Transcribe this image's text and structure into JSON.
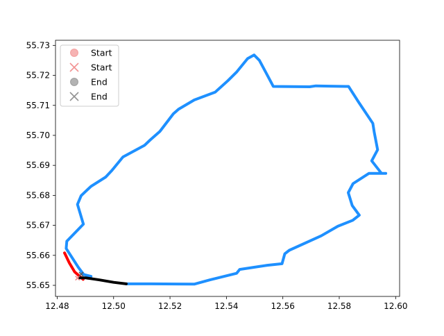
{
  "chart_data": {
    "type": "line",
    "title": "",
    "xlabel": "",
    "ylabel": "",
    "xlim": [
      12.4794,
      12.6014
    ],
    "ylim": [
      55.6463,
      55.7317
    ],
    "grid": false,
    "x_ticks": [
      "12.48",
      "12.50",
      "12.52",
      "12.54",
      "12.56",
      "12.58",
      "12.60"
    ],
    "x_tick_values": [
      12.48,
      12.5,
      12.52,
      12.54,
      12.56,
      12.58,
      12.6
    ],
    "y_ticks": [
      "55.65",
      "55.66",
      "55.67",
      "55.68",
      "55.69",
      "55.70",
      "55.71",
      "55.72",
      "55.73"
    ],
    "y_tick_values": [
      55.65,
      55.66,
      55.67,
      55.68,
      55.69,
      55.7,
      55.71,
      55.72,
      55.73
    ],
    "legend_position": "upper left",
    "legend": [
      {
        "label": "Start",
        "marker": "circle",
        "color": "#f08080"
      },
      {
        "label": "Start",
        "marker": "x",
        "color": "#f08080"
      },
      {
        "label": "End",
        "marker": "circle",
        "color": "#808080"
      },
      {
        "label": "End",
        "marker": "x",
        "color": "#808080"
      }
    ],
    "series": [
      {
        "color": "#1e90ff",
        "x": [
          12.5045,
          12.5081,
          12.5135,
          12.5286,
          12.5341,
          12.5436,
          12.5447,
          12.5545,
          12.5597,
          12.5607,
          12.5623,
          12.5736,
          12.5795,
          12.5848,
          12.5871,
          12.5846,
          12.5832,
          12.5849,
          12.5905,
          12.5965,
          12.595,
          12.5915,
          12.5936,
          12.5924,
          12.5919,
          12.5868,
          12.5833,
          12.5823,
          12.5765,
          12.5717,
          12.5695,
          12.5566,
          12.5559,
          12.5517,
          12.5498,
          12.5475,
          12.5437,
          12.5405,
          12.536,
          12.5286,
          12.523,
          12.5212,
          12.5164,
          12.513,
          12.511,
          12.5033,
          12.4994,
          12.4972,
          12.492,
          12.4885,
          12.4872,
          12.4893,
          12.4834,
          12.4832,
          12.4875,
          12.4894,
          12.492
        ],
        "y": [
          55.6505,
          55.6505,
          55.6505,
          55.6504,
          55.6518,
          55.654,
          55.6553,
          55.6567,
          55.6572,
          55.6605,
          55.6617,
          55.6665,
          55.6697,
          55.6717,
          55.6734,
          55.6766,
          55.6809,
          55.6839,
          55.6873,
          55.6873,
          55.6873,
          55.6915,
          55.6952,
          55.7011,
          55.704,
          55.7112,
          55.7163,
          55.7163,
          55.7164,
          55.7165,
          55.7162,
          55.7163,
          55.7176,
          55.725,
          55.7268,
          55.7256,
          55.7212,
          55.7182,
          55.7144,
          55.7118,
          55.7087,
          55.7072,
          55.7013,
          55.6985,
          55.6967,
          55.6928,
          55.6883,
          55.6861,
          55.683,
          55.6799,
          55.677,
          55.6704,
          55.6647,
          55.6623,
          55.656,
          55.6536,
          55.653
        ]
      },
      {
        "color": "#ff0000",
        "x": [
          12.4826,
          12.4843,
          12.4862,
          12.4883,
          12.4892
        ],
        "y": [
          55.6608,
          55.6575,
          55.6545,
          55.6527,
          55.652
        ]
      },
      {
        "color": "#000000",
        "x": [
          12.488,
          12.49,
          12.495,
          12.5,
          12.5045
        ],
        "y": [
          55.6525,
          55.6525,
          55.6518,
          55.651,
          55.6505
        ]
      }
    ]
  }
}
